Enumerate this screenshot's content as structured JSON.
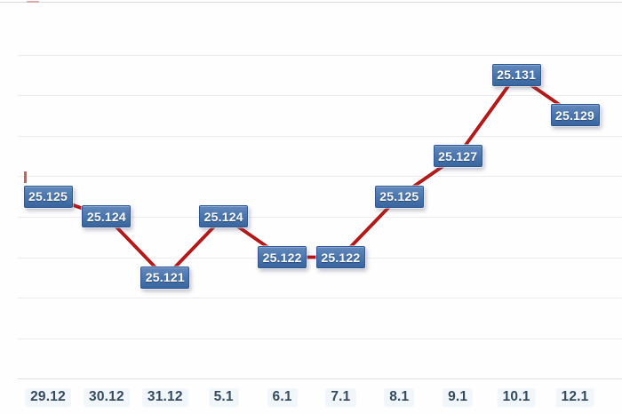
{
  "chart_data": {
    "type": "line",
    "title": "",
    "xlabel": "",
    "ylabel": "",
    "categories": [
      "29.12",
      "30.12",
      "31.12",
      "5.1",
      "6.1",
      "7.1",
      "8.1",
      "9.1",
      "10.1",
      "12.1"
    ],
    "values": [
      25.125,
      25.124,
      25.121,
      25.124,
      25.122,
      25.122,
      25.125,
      25.127,
      25.131,
      25.129
    ],
    "point_labels": [
      "25.125",
      "25.124",
      "25.121",
      "25.124",
      "25.122",
      "25.122",
      "25.125",
      "25.127",
      "25.131",
      "25.129"
    ],
    "ylim": [
      25.114,
      25.135
    ],
    "y_gridline_values": [
      25.116,
      25.118,
      25.12,
      25.122,
      25.124,
      25.126,
      25.128,
      25.13,
      25.132
    ],
    "grid": "horizontal",
    "legend": "none",
    "line_color": "#c41717",
    "line_shadow_color": "#9c1010",
    "label_box_top_color": "#6289bc",
    "label_box_bottom_color": "#3a66a0",
    "label_box_border_color": "#2d5791",
    "label_text_color": "#ffffff",
    "tick_label_color": "#35495e",
    "gridline_color": "#edebf0"
  }
}
